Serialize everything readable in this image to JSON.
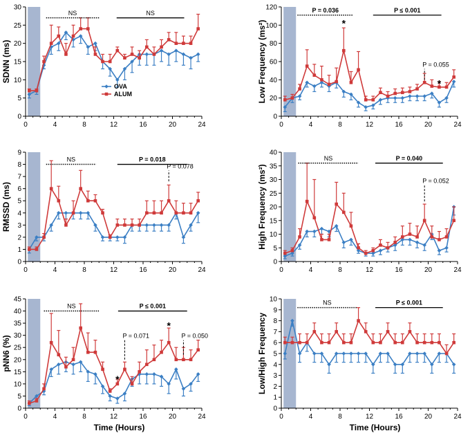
{
  "colors": {
    "ova": "#3b7fc4",
    "alum": "#cf3a3a",
    "shade": "#a7b6d0"
  },
  "legend": {
    "ova": "OVA",
    "alum": "ALUM"
  },
  "x_axis_label": "Time (Hours)",
  "x_ticks": [
    "0",
    "4",
    "8",
    "12",
    "16",
    "20",
    "24"
  ],
  "chart_data": [
    {
      "type": "line",
      "ylabel": "SDNN (ms)",
      "ylim": [
        0,
        30
      ],
      "yticks": [
        0,
        5,
        10,
        15,
        20,
        25,
        30
      ],
      "xlim": [
        0,
        24
      ],
      "shaded_region": [
        0.3,
        2
      ],
      "x": [
        0.5,
        1.5,
        2.5,
        3.5,
        4.5,
        5.5,
        6.5,
        7.5,
        8.5,
        9.5,
        10.5,
        11.5,
        12.5,
        13.5,
        14.5,
        15.5,
        16.5,
        17.5,
        18.5,
        19.5,
        20.5,
        21.5,
        22.5,
        23.5
      ],
      "series": [
        {
          "name": "OVA",
          "values": [
            6,
            7,
            14,
            19,
            20,
            23,
            21,
            22,
            19,
            20,
            15,
            13,
            10,
            13,
            15,
            17,
            17,
            17,
            18,
            17,
            18,
            17,
            16,
            17
          ],
          "errors": [
            1,
            1,
            1,
            2,
            2,
            2,
            2,
            2,
            2,
            2,
            2,
            2,
            2,
            3,
            3,
            3,
            3,
            3,
            3,
            3,
            3,
            3,
            3,
            2
          ]
        },
        {
          "name": "ALUM",
          "values": [
            7,
            7,
            15,
            20,
            22,
            17,
            22,
            24,
            24,
            17,
            15,
            15,
            18,
            16,
            17,
            16,
            19,
            17,
            19,
            21,
            20,
            20,
            20,
            24
          ],
          "errors": [
            0.5,
            0.5,
            1.5,
            5,
            2.5,
            3,
            3,
            3,
            3,
            2,
            2,
            2,
            1,
            1,
            2,
            2,
            2,
            2,
            2,
            2,
            3,
            2,
            2,
            4
          ]
        }
      ],
      "annotations": [
        {
          "kind": "bracket",
          "style": "dotted",
          "x1": 2.8,
          "x2": 10,
          "y": 27,
          "label": "NS",
          "bold": false
        },
        {
          "kind": "bracket",
          "style": "solid",
          "x1": 12.4,
          "x2": 21.6,
          "y": 27,
          "label": "NS",
          "bold": false
        }
      ],
      "legend_shown": true,
      "legend_position": "center-left"
    },
    {
      "type": "line",
      "ylabel": "Low Frequency (ms²)",
      "ylim": [
        0,
        120
      ],
      "yticks": [
        0,
        20,
        40,
        60,
        80,
        100,
        120
      ],
      "xlim": [
        0,
        24
      ],
      "shaded_region": [
        0.3,
        2
      ],
      "x": [
        0.5,
        1.5,
        2.5,
        3.5,
        4.5,
        5.5,
        6.5,
        7.5,
        8.5,
        9.5,
        10.5,
        11.5,
        12.5,
        13.5,
        14.5,
        15.5,
        16.5,
        17.5,
        18.5,
        19.5,
        20.5,
        21.5,
        22.5,
        23.5
      ],
      "series": [
        {
          "name": "OVA",
          "values": [
            10,
            20,
            22,
            37,
            33,
            37,
            33,
            37,
            27,
            24,
            15,
            10,
            12,
            18,
            20,
            20,
            20,
            22,
            22,
            22,
            25,
            15,
            20,
            38
          ],
          "errors": [
            5,
            5,
            4,
            5,
            6,
            5,
            6,
            6,
            6,
            6,
            5,
            4,
            4,
            5,
            5,
            5,
            5,
            5,
            5,
            5,
            5,
            5,
            5,
            6
          ]
        },
        {
          "name": "ALUM",
          "values": [
            18,
            20,
            30,
            55,
            45,
            40,
            35,
            38,
            72,
            37,
            51,
            18,
            18,
            26,
            22,
            25,
            26,
            27,
            30,
            37,
            33,
            32,
            32,
            43
          ],
          "errors": [
            4,
            4,
            5,
            18,
            12,
            15,
            10,
            15,
            25,
            12,
            20,
            4,
            4,
            5,
            5,
            5,
            5,
            5,
            5,
            10,
            7,
            6,
            5,
            8
          ]
        }
      ],
      "annotations": [
        {
          "kind": "bracket",
          "style": "dotted",
          "x1": 2.2,
          "x2": 9.8,
          "y": 111,
          "label": "P = 0.036",
          "bold": true
        },
        {
          "kind": "bracket",
          "style": "solid",
          "x1": 12.5,
          "x2": 21.8,
          "y": 111,
          "label": "P ≤ 0.001",
          "bold": true
        },
        {
          "kind": "star",
          "x": 8.5,
          "y": 102,
          "label": "*"
        },
        {
          "kind": "star",
          "x": 21.5,
          "y": 36,
          "label": "*"
        },
        {
          "kind": "pvalue",
          "x": 19.5,
          "y0": 40,
          "y1": 52,
          "label": "P = 0.055"
        }
      ]
    },
    {
      "type": "line",
      "ylabel": "RMSSD (ms)",
      "ylim": [
        0,
        9
      ],
      "yticks": [
        0,
        1,
        2,
        3,
        4,
        5,
        6,
        7,
        8,
        9
      ],
      "xlim": [
        0,
        24
      ],
      "shaded_region": [
        0.3,
        2
      ],
      "x": [
        0.5,
        1.5,
        2.5,
        3.5,
        4.5,
        5.5,
        6.5,
        7.5,
        8.5,
        9.5,
        10.5,
        11.5,
        12.5,
        13.5,
        14.5,
        15.5,
        16.5,
        17.5,
        18.5,
        19.5,
        20.5,
        21.5,
        22.5,
        23.5
      ],
      "series": [
        {
          "name": "OVA",
          "values": [
            1,
            2,
            2,
            3,
            4,
            4,
            4,
            4,
            4,
            3,
            2,
            2,
            2,
            2,
            3,
            3,
            3,
            3,
            3,
            3,
            4,
            2,
            3,
            4
          ],
          "errors": [
            0.3,
            0.3,
            0.3,
            0.5,
            0.5,
            0.5,
            0.5,
            0.5,
            0.5,
            0.5,
            0.3,
            0.3,
            0.3,
            0.5,
            0.5,
            0.5,
            0.5,
            0.5,
            0.5,
            0.5,
            0.5,
            0.5,
            0.5,
            0.8
          ]
        },
        {
          "name": "ALUM",
          "values": [
            1,
            1,
            2,
            6,
            5,
            3,
            4,
            6,
            5,
            5,
            4,
            2,
            3,
            3,
            3,
            3,
            4,
            4,
            4,
            5,
            4,
            4,
            4,
            5
          ],
          "errors": [
            0.2,
            0.2,
            0.3,
            2.3,
            1.2,
            0.5,
            1,
            1.5,
            0.8,
            0.5,
            0.3,
            0.2,
            0.5,
            0.5,
            0.5,
            0.5,
            1,
            1,
            1,
            1.3,
            1,
            0.8,
            0.8,
            0.7
          ]
        }
      ],
      "annotations": [
        {
          "kind": "bracket",
          "style": "dotted",
          "x1": 2.8,
          "x2": 9.6,
          "y": 8.0,
          "label": "NS",
          "bold": false
        },
        {
          "kind": "bracket",
          "style": "solid",
          "x1": 12.5,
          "x2": 22,
          "y": 8.0,
          "label": "P = 0.018",
          "bold": true
        },
        {
          "kind": "pvalue",
          "x": 19.5,
          "y0": 6.6,
          "y1": 7.5,
          "label": "P = 0.078"
        }
      ]
    },
    {
      "type": "line",
      "ylabel": "High Frequency (ms²)",
      "ylim": [
        0,
        40
      ],
      "yticks": [
        0,
        5,
        10,
        15,
        20,
        25,
        30,
        35,
        40
      ],
      "xlim": [
        0,
        24
      ],
      "shaded_region": [
        0.3,
        2
      ],
      "x": [
        0.5,
        1.5,
        2.5,
        3.5,
        4.5,
        5.5,
        6.5,
        7.5,
        8.5,
        9.5,
        10.5,
        11.5,
        12.5,
        13.5,
        14.5,
        15.5,
        16.5,
        17.5,
        18.5,
        19.5,
        20.5,
        21.5,
        22.5,
        23.5
      ],
      "series": [
        {
          "name": "OVA",
          "values": [
            2,
            3,
            6,
            11,
            11,
            12,
            11,
            13,
            7,
            8,
            4,
            3,
            3,
            4,
            5,
            6,
            8,
            8,
            7,
            6,
            10,
            4,
            5,
            20
          ],
          "errors": [
            1,
            1,
            1.5,
            2,
            2,
            2,
            2,
            2,
            2,
            2,
            1,
            1,
            1,
            1.5,
            1.5,
            2,
            2,
            2,
            2,
            2,
            2,
            1.5,
            1.5,
            3
          ]
        },
        {
          "name": "ALUM",
          "values": [
            3,
            4,
            9,
            22,
            16,
            8,
            8,
            21,
            18,
            13,
            5,
            3,
            4,
            6,
            5,
            7,
            9,
            10,
            9,
            15,
            9,
            8,
            9,
            15
          ],
          "errors": [
            1,
            1,
            3,
            14,
            14,
            2,
            2,
            8,
            7,
            5,
            1.5,
            1,
            1,
            2,
            2,
            2,
            4,
            4,
            4,
            6,
            4,
            3,
            3,
            5
          ]
        }
      ],
      "annotations": [
        {
          "kind": "bracket",
          "style": "dotted",
          "x1": 2.3,
          "x2": 10.5,
          "y": 36,
          "label": "NS",
          "bold": false
        },
        {
          "kind": "bracket",
          "style": "solid",
          "x1": 12.8,
          "x2": 22,
          "y": 36,
          "label": "P = 0.040",
          "bold": true
        },
        {
          "kind": "pvalue",
          "x": 19.5,
          "y0": 22,
          "y1": 28,
          "label": "P = 0.052"
        }
      ]
    },
    {
      "type": "line",
      "ylabel": "pNN6 (%)",
      "ylim": [
        0,
        45
      ],
      "yticks": [
        0,
        5,
        10,
        15,
        20,
        25,
        30,
        35,
        40,
        45
      ],
      "xlim": [
        0,
        24
      ],
      "shaded_region": [
        0.3,
        2
      ],
      "x": [
        0.5,
        1.5,
        2.5,
        3.5,
        4.5,
        5.5,
        6.5,
        7.5,
        8.5,
        9.5,
        10.5,
        11.5,
        12.5,
        13.5,
        14.5,
        15.5,
        16.5,
        17.5,
        18.5,
        19.5,
        20.5,
        21.5,
        22.5,
        23.5
      ],
      "series": [
        {
          "name": "OVA",
          "values": [
            2,
            5,
            7,
            16,
            18,
            19,
            18,
            19,
            15,
            14,
            9,
            5,
            4,
            6,
            12,
            14,
            14,
            14,
            13,
            10,
            16,
            8,
            10,
            14
          ],
          "errors": [
            1,
            1,
            1.5,
            3,
            4,
            4,
            4,
            4,
            4,
            4,
            3,
            2,
            2,
            3,
            3,
            4,
            4,
            4,
            4,
            4,
            4,
            3,
            3,
            3
          ]
        },
        {
          "name": "ALUM",
          "values": [
            2,
            3,
            8,
            27,
            22,
            17,
            20,
            33,
            23,
            23,
            16,
            7,
            10,
            16,
            10,
            15,
            18,
            20,
            23,
            27,
            20,
            20,
            20,
            24
          ],
          "errors": [
            1,
            1,
            2,
            12,
            10,
            4,
            5,
            10,
            8,
            5,
            3,
            1,
            2,
            3,
            3,
            4,
            6,
            6,
            5,
            6,
            5,
            5,
            4,
            4
          ]
        }
      ],
      "annotations": [
        {
          "kind": "bracket",
          "style": "dotted",
          "x1": 2.5,
          "x2": 10,
          "y": 40,
          "label": "NS",
          "bold": false
        },
        {
          "kind": "bracket",
          "style": "solid",
          "x1": 12.6,
          "x2": 22,
          "y": 40,
          "label": "P ≤ 0.001",
          "bold": true
        },
        {
          "kind": "star",
          "x": 12.5,
          "y": 12,
          "label": "*"
        },
        {
          "kind": "star",
          "x": 19.5,
          "y": 34,
          "label": "*"
        },
        {
          "kind": "pvalue",
          "x": 13.5,
          "y0": 20,
          "y1": 28,
          "label": "P = 0.071"
        },
        {
          "kind": "pvalue",
          "x": 21.5,
          "y0": 22,
          "y1": 28,
          "label": "P = 0.050"
        }
      ]
    },
    {
      "type": "line",
      "ylabel": "Low/High Frequency",
      "ylim": [
        0,
        10
      ],
      "yticks": [
        0,
        1,
        2,
        3,
        4,
        5,
        6,
        7,
        8,
        9,
        10
      ],
      "xlim": [
        0,
        24
      ],
      "shaded_region": [
        0.3,
        2
      ],
      "x": [
        0.5,
        1.5,
        2.5,
        3.5,
        4.5,
        5.5,
        6.5,
        7.5,
        8.5,
        9.5,
        10.5,
        11.5,
        12.5,
        13.5,
        14.5,
        15.5,
        16.5,
        17.5,
        18.5,
        19.5,
        20.5,
        21.5,
        22.5,
        23.5
      ],
      "series": [
        {
          "name": "OVA",
          "values": [
            5,
            8,
            5,
            6,
            5,
            5,
            4,
            5,
            5,
            5,
            5,
            5,
            4,
            5,
            5,
            4,
            4,
            5,
            5,
            5,
            4,
            5,
            5,
            4
          ],
          "errors": [
            0.5,
            0.5,
            0.8,
            0.8,
            0.8,
            0.8,
            0.8,
            0.8,
            0.8,
            0.8,
            0.8,
            0.8,
            0.8,
            0.8,
            0.8,
            0.8,
            0.8,
            0.8,
            0.8,
            0.8,
            0.8,
            0.8,
            0.8,
            0.8
          ]
        },
        {
          "name": "ALUM",
          "values": [
            6,
            6,
            6,
            6,
            7,
            6,
            6,
            7,
            6,
            6,
            8,
            7,
            6,
            6,
            7,
            6,
            6,
            7,
            6,
            6,
            6,
            6,
            5,
            6
          ],
          "errors": [
            0.5,
            0.5,
            0.8,
            0.8,
            0.8,
            0.8,
            0.8,
            0.8,
            0.8,
            0.8,
            1.2,
            0.8,
            0.8,
            0.8,
            0.8,
            0.8,
            0.8,
            0.8,
            0.8,
            0.8,
            0.8,
            0.8,
            0.8,
            0.8
          ]
        }
      ],
      "annotations": [
        {
          "kind": "bracket",
          "style": "dotted",
          "x1": 2.2,
          "x2": 10.3,
          "y": 9.2,
          "label": "NS",
          "bold": false
        },
        {
          "kind": "bracket",
          "style": "solid",
          "x1": 12.8,
          "x2": 22,
          "y": 9.2,
          "label": "P ≤ 0.001",
          "bold": true
        }
      ]
    }
  ]
}
